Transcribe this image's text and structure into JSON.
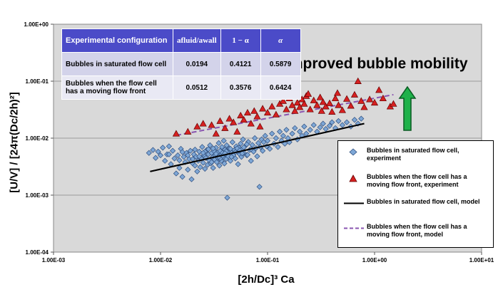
{
  "chart_data": {
    "type": "scatter",
    "xscale": "log",
    "yscale": "log",
    "xlim": [
      0.001,
      10
    ],
    "ylim": [
      0.0001,
      1
    ],
    "xticks": [
      "1.00E-03",
      "1.00E-02",
      "1.00E-01",
      "1.00E+00",
      "1.00E+01"
    ],
    "yticks": [
      "1.00E+00",
      "1.00E-01",
      "1.00E-02",
      "1.00E-03",
      "1.00E-04"
    ],
    "xlabel": "[2h/Dc]³ Ca",
    "ylabel": "[U/V] / [24π(Dc/2h)²]",
    "grid": "horizontal",
    "legend_position": "right",
    "annotation": "Improved bubble mobility",
    "series": [
      {
        "name": "Bubbles in saturated flow cell, experiment",
        "marker": "diamond",
        "color": "#7ea7d6",
        "points": [
          [
            0.0078,
            0.0055
          ],
          [
            0.0085,
            0.0062
          ],
          [
            0.009,
            0.0045
          ],
          [
            0.0095,
            0.0058
          ],
          [
            0.01,
            0.005
          ],
          [
            0.0105,
            0.0068
          ],
          [
            0.011,
            0.004
          ],
          [
            0.0115,
            0.0052
          ],
          [
            0.012,
            0.0072
          ],
          [
            0.0125,
            0.0035
          ],
          [
            0.013,
            0.006
          ],
          [
            0.0135,
            0.0044
          ],
          [
            0.014,
            0.0024
          ],
          [
            0.0145,
            0.005
          ],
          [
            0.015,
            0.003
          ],
          [
            0.0155,
            0.0065
          ],
          [
            0.016,
            0.0021
          ],
          [
            0.0165,
            0.0047
          ],
          [
            0.017,
            0.0038
          ],
          [
            0.0175,
            0.0055
          ],
          [
            0.018,
            0.0028
          ],
          [
            0.0185,
            0.0043
          ],
          [
            0.019,
            0.006
          ],
          [
            0.0195,
            0.0019
          ],
          [
            0.02,
            0.0036
          ],
          [
            0.0205,
            0.0052
          ],
          [
            0.021,
            0.0033
          ],
          [
            0.0215,
            0.0047
          ],
          [
            0.022,
            0.0026
          ],
          [
            0.0225,
            0.004
          ],
          [
            0.023,
            0.0058
          ],
          [
            0.0235,
            0.0031
          ],
          [
            0.024,
            0.0044
          ],
          [
            0.0245,
            0.007
          ],
          [
            0.025,
            0.0037
          ],
          [
            0.0255,
            0.005
          ],
          [
            0.026,
            0.0029
          ],
          [
            0.0265,
            0.0045
          ],
          [
            0.027,
            0.0062
          ],
          [
            0.0275,
            0.0034
          ],
          [
            0.028,
            0.0052
          ],
          [
            0.0285,
            0.0041
          ],
          [
            0.029,
            0.0075
          ],
          [
            0.0295,
            0.0036
          ],
          [
            0.03,
            0.0055
          ],
          [
            0.0305,
            0.0046
          ],
          [
            0.031,
            0.003
          ],
          [
            0.0315,
            0.006
          ],
          [
            0.032,
            0.0042
          ],
          [
            0.0325,
            0.005
          ],
          [
            0.033,
            0.0068
          ],
          [
            0.0335,
            0.0038
          ],
          [
            0.034,
            0.0056
          ],
          [
            0.0345,
            0.0045
          ],
          [
            0.035,
            0.0082
          ],
          [
            0.0355,
            0.0033
          ],
          [
            0.036,
            0.006
          ],
          [
            0.0365,
            0.005
          ],
          [
            0.037,
            0.004
          ],
          [
            0.0375,
            0.007
          ],
          [
            0.038,
            0.0055
          ],
          [
            0.0385,
            0.0046
          ],
          [
            0.039,
            0.009
          ],
          [
            0.0395,
            0.0036
          ],
          [
            0.04,
            0.0063
          ],
          [
            0.0405,
            0.0052
          ],
          [
            0.041,
            0.0043
          ],
          [
            0.0415,
            0.0075
          ],
          [
            0.042,
            0.0009
          ],
          [
            0.0425,
            0.0058
          ],
          [
            0.043,
            0.0048
          ],
          [
            0.044,
            0.0066
          ],
          [
            0.045,
            0.004
          ],
          [
            0.046,
            0.0055
          ],
          [
            0.047,
            0.0085
          ],
          [
            0.048,
            0.005
          ],
          [
            0.049,
            0.0062
          ],
          [
            0.05,
            0.0044
          ],
          [
            0.051,
            0.0072
          ],
          [
            0.052,
            0.0058
          ],
          [
            0.053,
            0.0035
          ],
          [
            0.054,
            0.0068
          ],
          [
            0.055,
            0.0052
          ],
          [
            0.056,
            0.008
          ],
          [
            0.057,
            0.0047
          ],
          [
            0.058,
            0.0064
          ],
          [
            0.059,
            0.0095
          ],
          [
            0.06,
            0.0055
          ],
          [
            0.062,
            0.0073
          ],
          [
            0.064,
            0.005
          ],
          [
            0.066,
            0.0086
          ],
          [
            0.068,
            0.0062
          ],
          [
            0.07,
            0.004
          ],
          [
            0.072,
            0.0076
          ],
          [
            0.074,
            0.0058
          ],
          [
            0.076,
            0.01
          ],
          [
            0.078,
            0.0067
          ],
          [
            0.08,
            0.0048
          ],
          [
            0.082,
            0.0082
          ],
          [
            0.084,
            0.0014
          ],
          [
            0.086,
            0.007
          ],
          [
            0.088,
            0.0095
          ],
          [
            0.09,
            0.006
          ],
          [
            0.092,
            0.0085
          ],
          [
            0.095,
            0.011
          ],
          [
            0.098,
            0.0072
          ],
          [
            0.1,
            0.009
          ],
          [
            0.105,
            0.0065
          ],
          [
            0.11,
            0.012
          ],
          [
            0.115,
            0.008
          ],
          [
            0.12,
            0.01
          ],
          [
            0.125,
            0.007
          ],
          [
            0.13,
            0.013
          ],
          [
            0.135,
            0.009
          ],
          [
            0.14,
            0.011
          ],
          [
            0.145,
            0.008
          ],
          [
            0.15,
            0.014
          ],
          [
            0.155,
            0.01
          ],
          [
            0.16,
            0.0085
          ],
          [
            0.17,
            0.012
          ],
          [
            0.18,
            0.015
          ],
          [
            0.19,
            0.0095
          ],
          [
            0.2,
            0.013
          ],
          [
            0.21,
            0.011
          ],
          [
            0.22,
            0.016
          ],
          [
            0.23,
            0.012
          ],
          [
            0.25,
            0.014
          ],
          [
            0.27,
            0.017
          ],
          [
            0.29,
            0.013
          ],
          [
            0.31,
            0.0155
          ],
          [
            0.33,
            0.018
          ],
          [
            0.35,
            0.0145
          ],
          [
            0.38,
            0.0165
          ],
          [
            0.4,
            0.019
          ],
          [
            0.43,
            0.015
          ],
          [
            0.46,
            0.02
          ],
          [
            0.5,
            0.017
          ],
          [
            0.55,
            0.019
          ],
          [
            0.6,
            0.016
          ],
          [
            0.65,
            0.021
          ],
          [
            0.7,
            0.018
          ],
          [
            0.75,
            0.022
          ],
          [
            0.012,
            0.0052
          ],
          [
            0.016,
            0.0057
          ],
          [
            0.021,
            0.0063
          ],
          [
            0.026,
            0.0058
          ],
          [
            0.031,
            0.0066
          ],
          [
            0.036,
            0.0044
          ],
          [
            0.041,
            0.0059
          ],
          [
            0.046,
            0.0047
          ],
          [
            0.052,
            0.0066
          ],
          [
            0.058,
            0.0054
          ],
          [
            0.064,
            0.0078
          ],
          [
            0.07,
            0.0064
          ],
          [
            0.018,
            0.005
          ],
          [
            0.023,
            0.0048
          ],
          [
            0.028,
            0.0064
          ],
          [
            0.033,
            0.0053
          ],
          [
            0.038,
            0.0049
          ],
          [
            0.015,
            0.0041
          ],
          [
            0.02,
            0.0043
          ],
          [
            0.025,
            0.0055
          ],
          [
            0.03,
            0.0038
          ],
          [
            0.035,
            0.0047
          ],
          [
            0.04,
            0.0054
          ],
          [
            0.045,
            0.0065
          ],
          [
            0.05,
            0.0057
          ],
          [
            0.055,
            0.0061
          ],
          [
            0.06,
            0.0069
          ],
          [
            0.065,
            0.0051
          ]
        ]
      },
      {
        "name": "Bubbles when the flow cell has a moving flow front, experiment",
        "marker": "triangle",
        "color": "#d62020",
        "points": [
          [
            0.014,
            0.012
          ],
          [
            0.018,
            0.013
          ],
          [
            0.022,
            0.016
          ],
          [
            0.025,
            0.018
          ],
          [
            0.03,
            0.017
          ],
          [
            0.033,
            0.012
          ],
          [
            0.036,
            0.02
          ],
          [
            0.04,
            0.015
          ],
          [
            0.044,
            0.022
          ],
          [
            0.048,
            0.019
          ],
          [
            0.052,
            0.013
          ],
          [
            0.056,
            0.025
          ],
          [
            0.06,
            0.021
          ],
          [
            0.065,
            0.028
          ],
          [
            0.07,
            0.018
          ],
          [
            0.075,
            0.03
          ],
          [
            0.08,
            0.024
          ],
          [
            0.085,
            0.016
          ],
          [
            0.09,
            0.033
          ],
          [
            0.1,
            0.028
          ],
          [
            0.11,
            0.036
          ],
          [
            0.12,
            0.026
          ],
          [
            0.13,
            0.04
          ],
          [
            0.14,
            0.045
          ],
          [
            0.15,
            0.032
          ],
          [
            0.16,
            0.05
          ],
          [
            0.17,
            0.038
          ],
          [
            0.18,
            0.03
          ],
          [
            0.19,
            0.042
          ],
          [
            0.2,
            0.035
          ],
          [
            0.21,
            0.048
          ],
          [
            0.22,
            0.04
          ],
          [
            0.23,
            0.055
          ],
          [
            0.25,
            0.032
          ],
          [
            0.27,
            0.046
          ],
          [
            0.29,
            0.038
          ],
          [
            0.31,
            0.052
          ],
          [
            0.33,
            0.043
          ],
          [
            0.35,
            0.036
          ],
          [
            0.38,
            0.041
          ],
          [
            0.4,
            0.029
          ],
          [
            0.43,
            0.05
          ],
          [
            0.46,
            0.038
          ],
          [
            0.5,
            0.031
          ],
          [
            0.55,
            0.049
          ],
          [
            0.6,
            0.037
          ],
          [
            0.65,
            0.058
          ],
          [
            0.7,
            0.1
          ],
          [
            0.75,
            0.045
          ],
          [
            0.8,
            0.035
          ],
          [
            0.9,
            0.048
          ],
          [
            1.0,
            0.042
          ],
          [
            1.1,
            0.07
          ],
          [
            1.2,
            0.05
          ],
          [
            1.4,
            0.036
          ],
          [
            1.5,
            0.04
          ],
          [
            0.17,
            0.065
          ],
          [
            0.24,
            0.06
          ],
          [
            0.32,
            0.03
          ],
          [
            0.45,
            0.062
          ]
        ]
      },
      {
        "name": "Bubbles in saturated flow cell, model",
        "line": "solid",
        "color": "#000000",
        "points": [
          [
            0.008,
            0.0026
          ],
          [
            0.8,
            0.018
          ]
        ]
      },
      {
        "name": "Bubbles when the flow cell has a moving flow front, model",
        "line": "dashed",
        "color": "#8a55b0",
        "points": [
          [
            0.014,
            0.0112
          ],
          [
            1.5,
            0.058
          ]
        ]
      }
    ],
    "table": {
      "headers": [
        "Experimental configuration",
        "afluid/awall",
        "1 − α",
        "α"
      ],
      "rows": [
        [
          "Bubbles in saturated flow cell",
          "0.0194",
          "0.4121",
          "0.5879"
        ],
        [
          "Bubbles when the flow cell has a moving flow front",
          "0.0512",
          "0.3576",
          "0.6424"
        ]
      ]
    }
  }
}
